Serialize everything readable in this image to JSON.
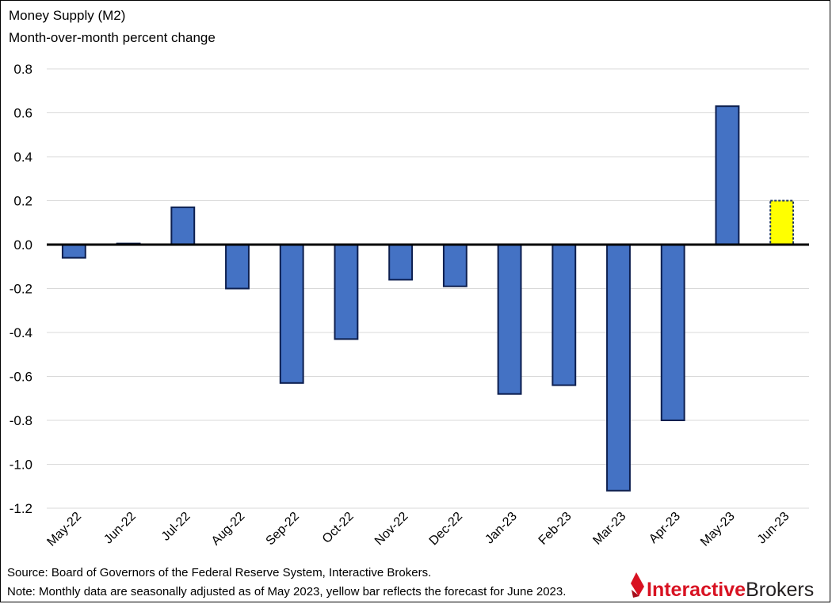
{
  "chart_data": {
    "type": "bar",
    "title": "Money Supply (M2)",
    "subtitle": "Month-over-month percent change",
    "xlabel": "",
    "ylabel": "",
    "ylim": [
      -1.2,
      0.8
    ],
    "yticks": [
      0.8,
      0.6,
      0.4,
      0.2,
      0.0,
      -0.2,
      -0.4,
      -0.6,
      -0.8,
      -1.0,
      -1.2
    ],
    "ytick_labels": [
      "0.8",
      "0.6",
      "0.4",
      "0.2",
      "0.0",
      "-0.2",
      "-0.4",
      "-0.6",
      "-0.8",
      "-1.0",
      "-1.2"
    ],
    "grid": true,
    "categories": [
      "May-22",
      "Jun-22",
      "Jul-22",
      "Aug-22",
      "Sep-22",
      "Oct-22",
      "Nov-22",
      "Dec-22",
      "Jan-23",
      "Feb-23",
      "Mar-23",
      "Apr-23",
      "May-23",
      "Jun-23"
    ],
    "values": [
      -0.06,
      0.005,
      0.17,
      -0.2,
      -0.63,
      -0.43,
      -0.16,
      -0.19,
      -0.68,
      -0.64,
      -1.12,
      -0.8,
      0.63,
      0.2
    ],
    "forecast": [
      false,
      false,
      false,
      false,
      false,
      false,
      false,
      false,
      false,
      false,
      false,
      false,
      false,
      true
    ],
    "colors": {
      "bar_fill": "#4472C4",
      "bar_edge": "#0D1F4F",
      "forecast_fill": "#FFFF00",
      "forecast_edge": "#1F3864",
      "gridline": "#D9D9D9",
      "zero_line": "#000000"
    },
    "notes": [
      "Source: Board of Governors of the Federal Reserve System, Interactive Brokers.",
      "Note: Monthly data are seasonally adjusted as of May 2023, yellow bar reflects the forecast for June 2023."
    ]
  },
  "logo": {
    "text_part1": "Interactive",
    "text_part2": "Brokers",
    "color_part1": "#D81222",
    "color_part2": "#231F20"
  }
}
